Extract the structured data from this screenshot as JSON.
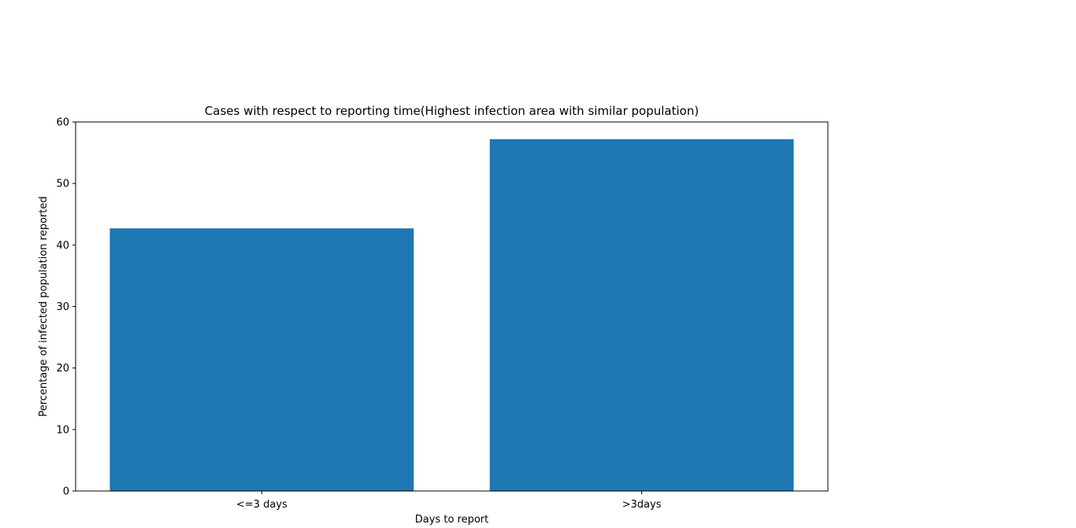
{
  "chart_data": {
    "type": "bar",
    "title": "Cases with respect to reporting time(Highest infection area with similar population)",
    "xlabel": "Days to report",
    "ylabel": "Percentage of infected population reported",
    "categories": [
      "<=3 days",
      ">3days"
    ],
    "values": [
      42.7,
      57.2
    ],
    "ylim": [
      0,
      60
    ],
    "yticks": [
      "0",
      "10",
      "20",
      "30",
      "40",
      "50",
      "60"
    ],
    "grid": false,
    "legend": "none",
    "colors": {
      "bar": "#1f77b4",
      "axis": "#000000",
      "background": "#ffffff"
    }
  }
}
